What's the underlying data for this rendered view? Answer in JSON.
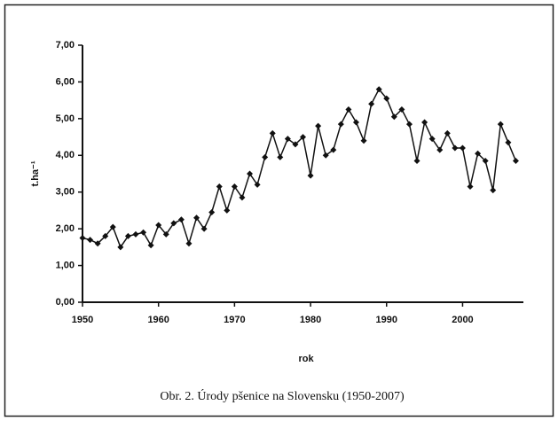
{
  "chart_data": {
    "type": "line",
    "caption": "Obr. 2. Úrody pšenice na Slovensku (1950-2007)",
    "xlabel": "rok",
    "ylabel": "t.ha⁻¹",
    "x": [
      1950,
      1951,
      1952,
      1953,
      1954,
      1955,
      1956,
      1957,
      1958,
      1959,
      1960,
      1961,
      1962,
      1963,
      1964,
      1965,
      1966,
      1967,
      1968,
      1969,
      1970,
      1971,
      1972,
      1973,
      1974,
      1975,
      1976,
      1977,
      1978,
      1979,
      1980,
      1981,
      1982,
      1983,
      1984,
      1985,
      1986,
      1987,
      1988,
      1989,
      1990,
      1991,
      1992,
      1993,
      1994,
      1995,
      1996,
      1997,
      1998,
      1999,
      2000,
      2001,
      2002,
      2003,
      2004,
      2005,
      2006,
      2007
    ],
    "series": [
      {
        "name": "Úrody",
        "color": "#111111",
        "values": [
          1.75,
          1.7,
          1.6,
          1.8,
          2.05,
          1.5,
          1.8,
          1.85,
          1.9,
          1.55,
          2.1,
          1.85,
          2.15,
          2.25,
          1.6,
          2.3,
          2.0,
          2.45,
          3.15,
          2.5,
          3.15,
          2.85,
          3.5,
          3.2,
          3.95,
          4.6,
          3.95,
          4.45,
          4.3,
          4.5,
          3.45,
          4.8,
          4.0,
          4.15,
          4.85,
          5.25,
          4.9,
          4.4,
          5.4,
          5.8,
          5.55,
          5.05,
          5.25,
          4.85,
          3.85,
          4.9,
          4.45,
          4.15,
          4.6,
          4.2,
          4.2,
          3.15,
          4.05,
          3.85,
          3.05,
          4.85,
          4.35,
          3.85
        ]
      }
    ],
    "xlim": [
      1950,
      2008
    ],
    "xticks": [
      1950,
      1960,
      1970,
      1980,
      1990,
      2000
    ],
    "ylim": [
      0,
      7
    ],
    "yticks": [
      {
        "value": 0,
        "label": "0,00"
      },
      {
        "value": 1,
        "label": "1,00"
      },
      {
        "value": 2,
        "label": "2,00"
      },
      {
        "value": 3,
        "label": "3,00"
      },
      {
        "value": 4,
        "label": "4,00"
      },
      {
        "value": 5,
        "label": "5,00"
      },
      {
        "value": 6,
        "label": "6,00"
      },
      {
        "value": 7,
        "label": "7,00"
      }
    ]
  }
}
